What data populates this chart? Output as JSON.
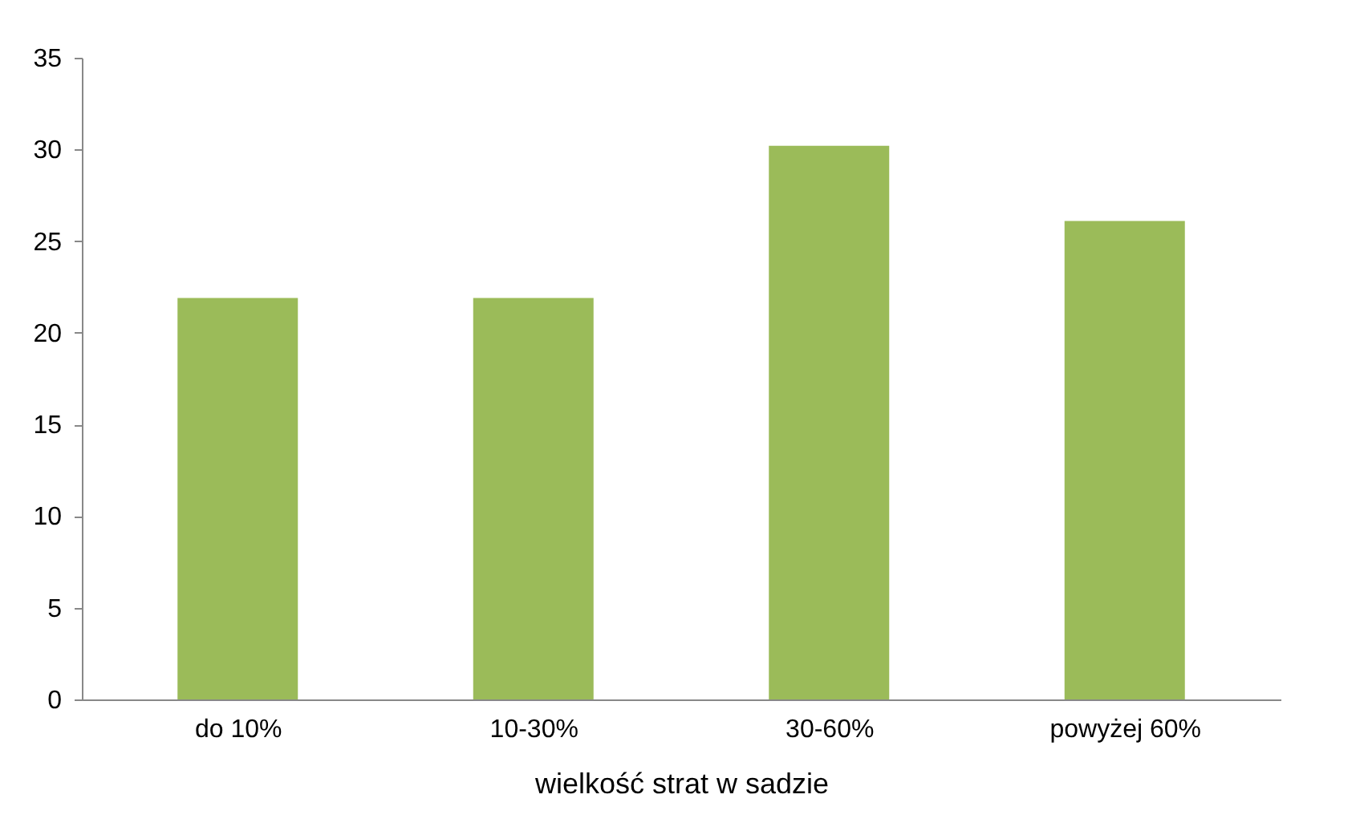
{
  "chart_data": {
    "type": "bar",
    "xlabel": "wielkość strat w sadzie",
    "categories": [
      "do 10%",
      "10-30%",
      "30-60%",
      "powyżej 60%"
    ],
    "series": [
      {
        "color": "#9bbb59",
        "values": [
          21.9,
          21.9,
          30.2,
          26.1
        ]
      }
    ],
    "ylim": [
      0,
      35
    ],
    "yticks": [
      0,
      5,
      10,
      15,
      20,
      25,
      30,
      35
    ],
    "grid": false,
    "legend": false
  }
}
